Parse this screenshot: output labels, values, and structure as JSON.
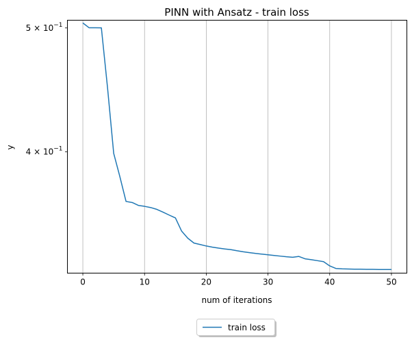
{
  "chart_data": {
    "type": "line",
    "title": "PINN with Ansatz - train loss",
    "xlabel": "num of iterations",
    "ylabel": "y",
    "yscale": "log",
    "xlim": [
      -2.5,
      52.5
    ],
    "ylim": [
      0.3215,
      0.507
    ],
    "x_ticks": [
      0,
      10,
      20,
      30,
      40,
      50
    ],
    "x_tick_labels": [
      "0",
      "10",
      "20",
      "30",
      "40",
      "50"
    ],
    "y_ticks": [
      {
        "value": 0.5,
        "base": "5 × 10",
        "exp": "−1"
      },
      {
        "value": 0.4,
        "base": "4 × 10",
        "exp": "−1"
      }
    ],
    "grid": "vertical",
    "legend_position": "bottom-center",
    "series": [
      {
        "name": "train loss",
        "color": "#1f77b4",
        "x": [
          0,
          1,
          2,
          3,
          4,
          5,
          6,
          7,
          8,
          9,
          10,
          11,
          12,
          13,
          14,
          15,
          16,
          17,
          18,
          19,
          20,
          21,
          22,
          23,
          24,
          25,
          26,
          27,
          28,
          29,
          30,
          31,
          32,
          33,
          34,
          35,
          36,
          37,
          38,
          39,
          40,
          41,
          42,
          43,
          44,
          45,
          46,
          47,
          48,
          49,
          50
        ],
        "y": [
          0.5045,
          0.5002,
          0.5002,
          0.5001,
          0.449,
          0.3989,
          0.3825,
          0.3658,
          0.3651,
          0.3632,
          0.3626,
          0.3618,
          0.3606,
          0.3588,
          0.3569,
          0.3551,
          0.3468,
          0.3424,
          0.3394,
          0.3385,
          0.3376,
          0.3369,
          0.3363,
          0.3358,
          0.3354,
          0.3347,
          0.3341,
          0.3336,
          0.3331,
          0.3327,
          0.3323,
          0.3319,
          0.3315,
          0.3311,
          0.3308,
          0.3313,
          0.3299,
          0.3294,
          0.3288,
          0.3282,
          0.3257,
          0.3242,
          0.324,
          0.3239,
          0.3238,
          0.3238,
          0.3237,
          0.3237,
          0.3236,
          0.3236,
          0.3236
        ]
      }
    ]
  }
}
